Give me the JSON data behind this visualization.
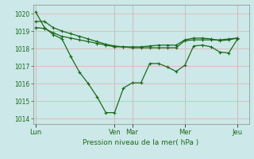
{
  "background_color": "#cce8e8",
  "grid_color": "#e8e8e8",
  "line_color": "#1a6b1a",
  "ylabel": "Pression niveau de la mer( hPa )",
  "ylim": [
    1013.7,
    1020.5
  ],
  "yticks": [
    1014,
    1015,
    1016,
    1017,
    1018,
    1019,
    1020
  ],
  "day_labels": [
    "Lun",
    "Ven",
    "Mar",
    "Mer",
    "Jeu"
  ],
  "day_positions": [
    0,
    9,
    11,
    17,
    23
  ],
  "xlim": [
    -0.3,
    24.3
  ],
  "line1_x": [
    0,
    1,
    2,
    3,
    4,
    5,
    6,
    7,
    8,
    9,
    10,
    11,
    12,
    13,
    14,
    15,
    16,
    17,
    18,
    19,
    20,
    21,
    22,
    23
  ],
  "line1_y": [
    1020.1,
    1019.2,
    1018.8,
    1018.55,
    1017.55,
    1016.65,
    1016.0,
    1015.25,
    1014.35,
    1014.35,
    1015.75,
    1016.05,
    1016.05,
    1017.15,
    1017.15,
    1016.95,
    1016.7,
    1017.05,
    1018.15,
    1018.2,
    1018.1,
    1017.8,
    1017.75,
    1018.55
  ],
  "line2_x": [
    0,
    1,
    2,
    3,
    4,
    5,
    6,
    7,
    8,
    9,
    10,
    11,
    12,
    13,
    14,
    15,
    16,
    17,
    18,
    19,
    20,
    21,
    22,
    23
  ],
  "line2_y": [
    1019.55,
    1019.55,
    1019.2,
    1019.0,
    1018.85,
    1018.7,
    1018.55,
    1018.4,
    1018.25,
    1018.15,
    1018.1,
    1018.05,
    1018.05,
    1018.05,
    1018.05,
    1018.05,
    1018.05,
    1018.45,
    1018.5,
    1018.5,
    1018.5,
    1018.5,
    1018.55,
    1018.6
  ],
  "line3_x": [
    0,
    1,
    2,
    3,
    4,
    5,
    6,
    7,
    8,
    9,
    10,
    11,
    12,
    13,
    14,
    15,
    16,
    17,
    18,
    19,
    20,
    21,
    22,
    23
  ],
  "line3_y": [
    1019.2,
    1019.15,
    1018.9,
    1018.7,
    1018.6,
    1018.5,
    1018.4,
    1018.3,
    1018.2,
    1018.1,
    1018.1,
    1018.1,
    1018.1,
    1018.15,
    1018.2,
    1018.2,
    1018.2,
    1018.5,
    1018.6,
    1018.6,
    1018.55,
    1018.45,
    1018.5,
    1018.6
  ]
}
